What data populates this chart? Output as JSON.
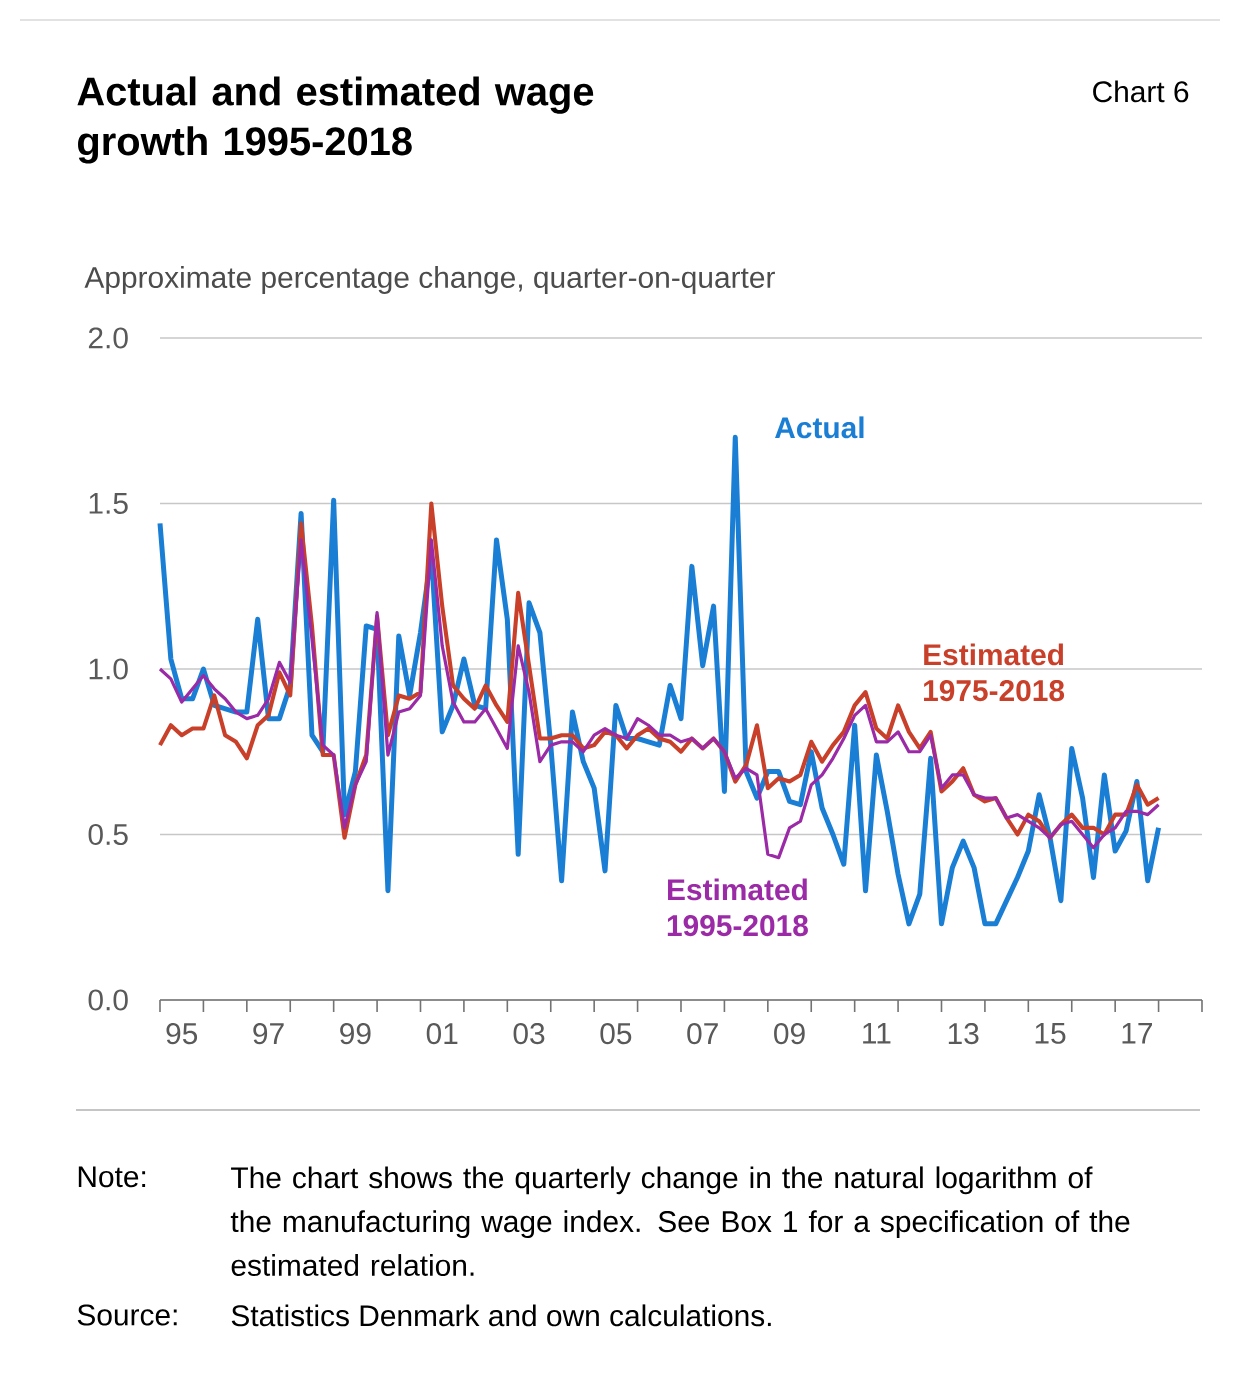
{
  "chart_data": {
    "type": "line",
    "title": "Actual and estimated wage growth 1995-2018",
    "ylabel": "Approximate percentage change, quarter-on-quarter",
    "annotations": [
      "Chart 6",
      "Note:",
      "The chart shows the quarterly change in the natural logarithm of the manufacturing wage index. See Box 1 for a specification of the estimated relation.",
      "Source:",
      "Statistics Denmark and own calculations."
    ],
    "categories": [
      null,
      null,
      "95",
      null,
      null,
      null,
      null,
      null,
      null,
      null,
      "97",
      null,
      null,
      null,
      null,
      null,
      null,
      null,
      "99",
      null,
      null,
      null,
      null,
      null,
      null,
      null,
      "01",
      null,
      null,
      null,
      null,
      null,
      null,
      null,
      "03",
      null,
      null,
      null,
      null,
      null,
      null,
      null,
      "05",
      null,
      null,
      null,
      null,
      null,
      null,
      null,
      "07",
      null,
      null,
      null,
      null,
      null,
      null,
      null,
      "09",
      null,
      null,
      null,
      null,
      null,
      null,
      null,
      "11",
      null,
      null,
      null,
      null,
      null,
      null,
      null,
      "13",
      null,
      null,
      null,
      null,
      null,
      null,
      null,
      "15",
      null,
      null,
      null,
      null,
      null,
      null,
      null,
      "17",
      null,
      null
    ],
    "series": [
      {
        "name": "Actual",
        "color": "#1a7fd4",
        "values": [
          1.44,
          1.03,
          0.91,
          0.91,
          1.0,
          0.89,
          0.88,
          0.87,
          0.87,
          1.15,
          0.85,
          0.85,
          0.95,
          1.47,
          0.8,
          0.75,
          1.51,
          0.56,
          0.69,
          1.13,
          1.12,
          0.33,
          1.1,
          0.92,
          1.11,
          1.35,
          0.81,
          0.89,
          1.03,
          0.89,
          0.88,
          1.39,
          1.15,
          0.44,
          1.2,
          1.11,
          0.77,
          0.36,
          0.87,
          0.72,
          0.64,
          0.39,
          0.89,
          0.79,
          0.79,
          0.78,
          0.77,
          0.95,
          0.85,
          1.31,
          1.01,
          1.19,
          0.63,
          1.7,
          0.69,
          0.61,
          0.69,
          0.69,
          0.6,
          0.59,
          0.75,
          0.58,
          0.5,
          0.41,
          0.83,
          0.33,
          0.74,
          0.57,
          0.38,
          0.23,
          0.32,
          0.73,
          0.23,
          0.4,
          0.48,
          0.4,
          0.23,
          0.23,
          0.3,
          0.37,
          0.45,
          0.62,
          0.49,
          0.3,
          0.76,
          0.61,
          0.37,
          0.68,
          0.45,
          0.51,
          0.66,
          0.36,
          0.52
        ]
      },
      {
        "name": "Estimated 1975-2018",
        "color": "#c9402a",
        "values": [
          0.77,
          0.83,
          0.8,
          0.82,
          0.82,
          0.92,
          0.8,
          0.78,
          0.73,
          0.83,
          0.86,
          0.99,
          0.92,
          1.44,
          1.13,
          0.74,
          0.74,
          0.49,
          0.65,
          0.74,
          1.16,
          0.8,
          0.92,
          0.91,
          0.93,
          1.5,
          1.19,
          0.95,
          0.91,
          0.88,
          0.95,
          0.89,
          0.84,
          1.23,
          1.01,
          0.79,
          0.79,
          0.8,
          0.8,
          0.76,
          0.77,
          0.81,
          0.8,
          0.76,
          0.8,
          0.82,
          0.79,
          0.78,
          0.75,
          0.79,
          0.76,
          0.79,
          0.75,
          0.66,
          0.71,
          0.83,
          0.64,
          0.67,
          0.66,
          0.68,
          0.78,
          0.72,
          0.77,
          0.81,
          0.89,
          0.93,
          0.82,
          0.79,
          0.89,
          0.81,
          0.76,
          0.81,
          0.63,
          0.66,
          0.7,
          0.62,
          0.6,
          0.61,
          0.55,
          0.5,
          0.56,
          0.54,
          0.49,
          0.53,
          0.56,
          0.52,
          0.52,
          0.5,
          0.56,
          0.56,
          0.65,
          0.59,
          0.61
        ]
      },
      {
        "name": "Estimated 1995-2018",
        "color": "#9b2aa6",
        "values": [
          1.0,
          0.97,
          0.9,
          0.94,
          0.98,
          0.94,
          0.91,
          0.87,
          0.85,
          0.86,
          0.91,
          1.02,
          0.96,
          1.39,
          1.09,
          0.77,
          0.74,
          0.52,
          0.65,
          0.72,
          1.17,
          0.74,
          0.87,
          0.88,
          0.92,
          1.39,
          1.07,
          0.9,
          0.84,
          0.84,
          0.88,
          0.82,
          0.76,
          1.07,
          0.93,
          0.72,
          0.77,
          0.78,
          0.78,
          0.75,
          0.8,
          0.82,
          0.8,
          0.79,
          0.85,
          0.83,
          0.8,
          0.8,
          0.78,
          0.79,
          0.76,
          0.79,
          0.75,
          0.67,
          0.7,
          0.68,
          0.44,
          0.43,
          0.52,
          0.54,
          0.65,
          0.68,
          0.73,
          0.79,
          0.86,
          0.89,
          0.78,
          0.78,
          0.81,
          0.75,
          0.75,
          0.8,
          0.64,
          0.68,
          0.68,
          0.62,
          0.61,
          0.61,
          0.55,
          0.56,
          0.54,
          0.52,
          0.49,
          0.53,
          0.54,
          0.5,
          0.46,
          0.5,
          0.52,
          0.57,
          0.57,
          0.56,
          0.59
        ]
      }
    ],
    "ylim": [
      0,
      2
    ],
    "yticks": [
      {
        "value": 0,
        "label": "0.0"
      },
      {
        "value": 0.5,
        "label": "0.5"
      },
      {
        "value": 1,
        "label": "1.0"
      },
      {
        "value": 1.5,
        "label": "1.5"
      },
      {
        "value": 2,
        "label": "2.0"
      }
    ],
    "grid": "y"
  }
}
